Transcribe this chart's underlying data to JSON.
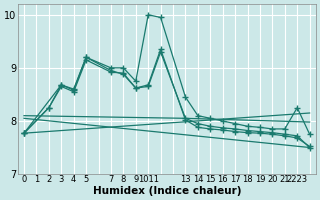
{
  "xlabel": "Humidex (Indice chaleur)",
  "bg_color": "#cce8e8",
  "grid_color": "#ffffff",
  "line_color": "#1a7a6e",
  "xlim": [
    -0.5,
    23.5
  ],
  "ylim": [
    7.0,
    10.2
  ],
  "yticks": [
    7,
    8,
    9,
    10
  ],
  "xtick_labels": [
    "0",
    "1",
    "2",
    "3",
    "4",
    "5",
    "",
    "7",
    "8",
    "9",
    "1011",
    "",
    "13",
    "14",
    "15",
    "16",
    "17",
    "18",
    "19",
    "20",
    "21",
    "2223"
  ],
  "lines": [
    {
      "x": [
        0,
        2,
        3,
        4,
        5,
        7,
        8,
        9,
        10,
        11,
        13,
        14,
        15,
        16,
        17,
        18,
        19,
        20,
        21,
        22,
        23
      ],
      "y": [
        7.77,
        8.25,
        8.68,
        8.6,
        9.2,
        9.0,
        9.0,
        8.75,
        10.0,
        9.95,
        8.45,
        8.1,
        8.05,
        8.0,
        7.95,
        7.9,
        7.88,
        7.85,
        7.85,
        8.25,
        7.75
      ]
    },
    {
      "x": [
        0,
        3,
        4,
        5,
        7,
        8,
        9,
        10,
        11,
        13,
        14,
        15,
        16,
        17,
        18,
        19,
        20,
        21,
        22,
        23
      ],
      "y": [
        7.77,
        8.68,
        8.58,
        9.2,
        8.95,
        8.88,
        8.62,
        8.65,
        9.3,
        8.05,
        7.95,
        7.9,
        7.87,
        7.85,
        7.82,
        7.8,
        7.78,
        7.75,
        7.72,
        7.5
      ]
    },
    {
      "x": [
        0,
        2,
        3,
        4,
        5,
        7,
        8,
        9,
        10,
        11,
        13,
        14,
        15,
        16,
        17,
        18,
        19,
        20,
        21,
        22,
        23
      ],
      "y": [
        7.77,
        8.25,
        8.65,
        8.55,
        9.15,
        8.92,
        8.9,
        8.62,
        8.68,
        9.35,
        8.02,
        7.88,
        7.85,
        7.83,
        7.8,
        7.78,
        7.77,
        7.75,
        7.72,
        7.68,
        7.52
      ]
    },
    {
      "x": [
        0,
        23
      ],
      "y": [
        8.05,
        7.5
      ],
      "no_marker": true
    },
    {
      "x": [
        0,
        23
      ],
      "y": [
        7.77,
        8.15
      ],
      "no_marker": true
    },
    {
      "x": [
        0,
        13,
        23
      ],
      "y": [
        8.1,
        8.05,
        7.98
      ],
      "no_marker": true
    }
  ]
}
